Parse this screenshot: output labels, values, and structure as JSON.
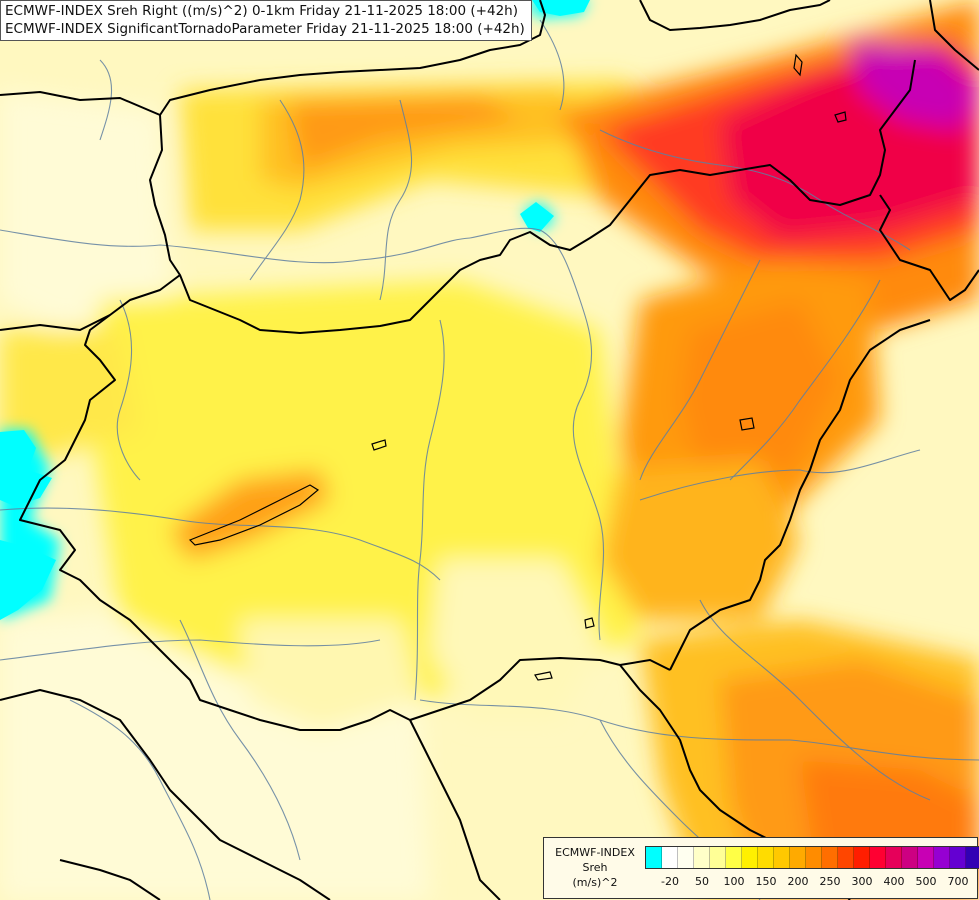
{
  "titles": {
    "line1": "ECMWF-INDEX Sreh Right ((m/s)^2) 0-1km Friday 21-11-2025 18:00 (+42h)",
    "line2": "ECMWF-INDEX SignificantTornadoParameter Friday 21-11-2025 18:00 (+42h)"
  },
  "legend": {
    "source": "ECMWF-INDEX",
    "parameter": "Sreh",
    "unit": "(m/s)^2",
    "tick_labels": [
      "-20",
      "50",
      "100",
      "150",
      "200",
      "250",
      "300",
      "400",
      "500",
      "700"
    ],
    "colors": [
      "#00ffff",
      "#ffffff",
      "#fffff0",
      "#ffffc8",
      "#ffff96",
      "#ffff46",
      "#fff000",
      "#ffdc00",
      "#ffc800",
      "#ffaa00",
      "#ff8c00",
      "#ff6e00",
      "#ff4600",
      "#ff1e00",
      "#ff0032",
      "#e6005a",
      "#cd0082",
      "#c800b4",
      "#9600d2",
      "#6400d2",
      "#3200b4",
      "#00008c"
    ]
  },
  "colors": {
    "border": "#000000",
    "river": "#5f7fa0",
    "low": "#fff6b0",
    "mid": "#ffe640",
    "high": "#ff8c00",
    "extreme": "#ff1e3c",
    "max": "#c800b4",
    "negative": "#00ffff"
  }
}
